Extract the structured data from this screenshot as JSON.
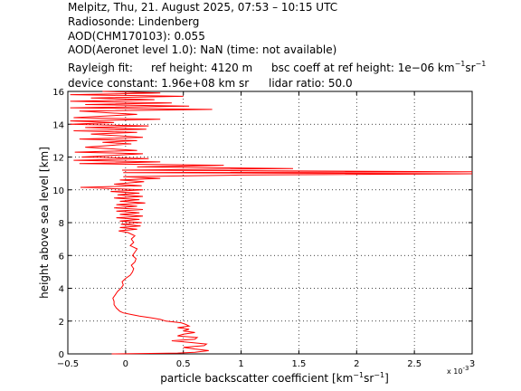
{
  "header": {
    "line1": "Melpitz, Thu, 21. August 2025, 07:53 – 10:15 UTC",
    "line2": "Radiosonde: Lindenberg",
    "line3": "AOD(CHM170103): 0.055",
    "line4": "AOD(Aeronet level 1.0): NaN   (time: not available)",
    "rayleigh_label": "Rayleigh fit:",
    "ref_height": "ref height: 4120 m",
    "bsc_coeff_prefix": "bsc coeff at ref height: 1e−06 km",
    "bsc_coeff_sup1": "−1",
    "bsc_coeff_mid": "sr",
    "bsc_coeff_sup2": "−1",
    "device_constant": "device constant: 1.96e+08 km sr",
    "lidar_ratio": "lidar ratio: 50.0"
  },
  "colors": {
    "line": "#ff0000",
    "axes": "#000000",
    "grid": "#000000",
    "background": "#ffffff"
  },
  "chart_data": {
    "type": "line",
    "title": "",
    "xlabel": "particle backscatter coefficient [km⁻¹sr⁻¹]",
    "xlabel_base": "particle backscatter coefficient [km",
    "xlabel_sup1": "−1",
    "xlabel_mid": "sr",
    "xlabel_sup2": "−1",
    "xlabel_end": "]",
    "ylabel": "height above sea level [km]",
    "x_multiplier": "x 10",
    "x_multiplier_exp": "-3",
    "xlim": [
      -0.5,
      3
    ],
    "ylim": [
      0,
      16
    ],
    "xticks": [
      -0.5,
      0,
      0.5,
      1,
      1.5,
      2,
      2.5,
      3
    ],
    "xtick_labels": [
      "−0.5",
      "0",
      "0.5",
      "1",
      "1.5",
      "2",
      "2.5",
      "3"
    ],
    "yticks": [
      0,
      2,
      4,
      6,
      8,
      10,
      12,
      14,
      16
    ],
    "ytick_labels": [
      "0",
      "2",
      "4",
      "6",
      "8",
      "10",
      "12",
      "14",
      "16"
    ],
    "grid": true,
    "legend": "none",
    "series": [
      {
        "points": [
          [
            -0.12,
            0.0
          ],
          [
            0.45,
            0.05
          ],
          [
            0.6,
            0.1
          ],
          [
            0.72,
            0.2
          ],
          [
            0.6,
            0.3
          ],
          [
            0.5,
            0.4
          ],
          [
            0.68,
            0.5
          ],
          [
            0.7,
            0.6
          ],
          [
            0.55,
            0.7
          ],
          [
            0.4,
            0.8
          ],
          [
            0.6,
            0.9
          ],
          [
            0.62,
            1.0
          ],
          [
            0.45,
            1.1
          ],
          [
            0.5,
            1.2
          ],
          [
            0.6,
            1.3
          ],
          [
            0.5,
            1.4
          ],
          [
            0.55,
            1.5
          ],
          [
            0.45,
            1.6
          ],
          [
            0.55,
            1.7
          ],
          [
            0.52,
            1.8
          ],
          [
            0.48,
            1.9
          ],
          [
            0.35,
            2.0
          ],
          [
            0.3,
            2.1
          ],
          [
            0.22,
            2.2
          ],
          [
            0.12,
            2.3
          ],
          [
            0.05,
            2.4
          ],
          [
            -0.02,
            2.5
          ],
          [
            -0.05,
            2.6
          ],
          [
            -0.08,
            2.8
          ],
          [
            -0.1,
            3.0
          ],
          [
            -0.1,
            3.2
          ],
          [
            -0.11,
            3.4
          ],
          [
            -0.09,
            3.6
          ],
          [
            -0.07,
            3.8
          ],
          [
            -0.04,
            4.0
          ],
          [
            -0.02,
            4.2
          ],
          [
            -0.03,
            4.4
          ],
          [
            0.0,
            4.6
          ],
          [
            0.04,
            4.8
          ],
          [
            0.06,
            5.0
          ],
          [
            0.07,
            5.2
          ],
          [
            0.05,
            5.4
          ],
          [
            0.08,
            5.6
          ],
          [
            0.09,
            5.8
          ],
          [
            0.06,
            6.0
          ],
          [
            0.08,
            6.2
          ],
          [
            0.1,
            6.4
          ],
          [
            0.04,
            6.6
          ],
          [
            0.07,
            6.8
          ],
          [
            0.05,
            7.0
          ],
          [
            0.08,
            7.2
          ],
          [
            0.02,
            7.4
          ],
          [
            -0.06,
            7.5
          ],
          [
            0.1,
            7.6
          ],
          [
            -0.05,
            7.7
          ],
          [
            0.13,
            7.8
          ],
          [
            -0.04,
            7.9
          ],
          [
            0.14,
            8.0
          ],
          [
            -0.05,
            8.1
          ],
          [
            0.12,
            8.2
          ],
          [
            -0.08,
            8.3
          ],
          [
            0.15,
            8.4
          ],
          [
            -0.05,
            8.5
          ],
          [
            0.12,
            8.6
          ],
          [
            -0.08,
            8.7
          ],
          [
            0.15,
            8.8
          ],
          [
            -0.1,
            8.9
          ],
          [
            0.1,
            9.0
          ],
          [
            -0.08,
            9.1
          ],
          [
            0.17,
            9.2
          ],
          [
            -0.05,
            9.3
          ],
          [
            0.12,
            9.4
          ],
          [
            -0.1,
            9.5
          ],
          [
            0.15,
            9.6
          ],
          [
            -0.07,
            9.7
          ],
          [
            0.12,
            9.8
          ],
          [
            -0.13,
            9.9
          ],
          [
            0.15,
            10.0
          ],
          [
            -0.39,
            10.15
          ],
          [
            0.14,
            10.25
          ],
          [
            -0.1,
            10.35
          ],
          [
            0.16,
            10.5
          ],
          [
            -0.05,
            10.6
          ],
          [
            0.3,
            10.7
          ],
          [
            -0.02,
            10.8
          ],
          [
            1.0,
            10.9
          ],
          [
            3.0,
            10.98
          ],
          [
            -0.02,
            11.05
          ],
          [
            3.0,
            11.1
          ],
          [
            -0.03,
            11.2
          ],
          [
            1.45,
            11.3
          ],
          [
            0.1,
            11.4
          ],
          [
            0.85,
            11.5
          ],
          [
            -0.4,
            11.6
          ],
          [
            0.3,
            11.7
          ],
          [
            -0.45,
            11.8
          ],
          [
            0.2,
            11.9
          ],
          [
            -0.38,
            12.0
          ],
          [
            0.15,
            12.2
          ],
          [
            -0.44,
            12.3
          ],
          [
            0.1,
            12.4
          ],
          [
            -0.35,
            12.6
          ],
          [
            0.05,
            12.8
          ],
          [
            -0.2,
            12.9
          ],
          [
            0.1,
            13.0
          ],
          [
            -0.4,
            13.1
          ],
          [
            0.15,
            13.2
          ],
          [
            -0.3,
            13.4
          ],
          [
            0.1,
            13.5
          ],
          [
            -0.45,
            13.6
          ],
          [
            0.18,
            13.7
          ],
          [
            -0.35,
            13.8
          ],
          [
            0.2,
            13.9
          ],
          [
            -0.48,
            14.0
          ],
          [
            -0.1,
            14.1
          ],
          [
            -0.48,
            14.2
          ],
          [
            0.3,
            14.3
          ],
          [
            -0.45,
            14.4
          ],
          [
            0.1,
            14.6
          ],
          [
            -0.4,
            14.8
          ],
          [
            0.75,
            14.9
          ],
          [
            -0.48,
            15.0
          ],
          [
            0.55,
            15.1
          ],
          [
            -0.35,
            15.2
          ],
          [
            0.4,
            15.3
          ],
          [
            -0.48,
            15.4
          ],
          [
            0.25,
            15.5
          ],
          [
            -0.3,
            15.6
          ],
          [
            0.5,
            15.7
          ],
          [
            -0.48,
            15.8
          ],
          [
            0.3,
            15.9
          ],
          [
            -0.2,
            16.0
          ]
        ]
      }
    ]
  }
}
